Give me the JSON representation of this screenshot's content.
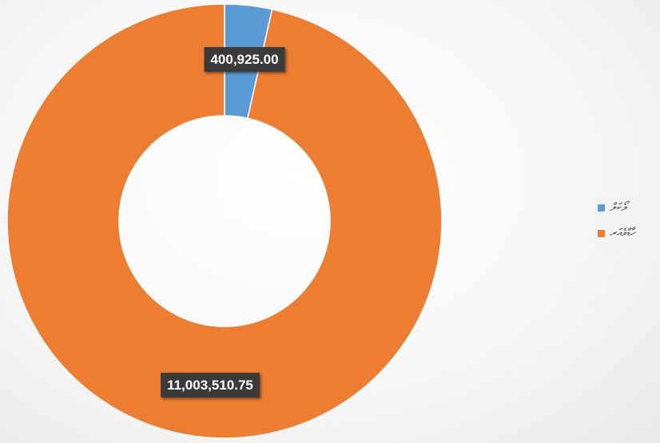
{
  "chart_data": {
    "type": "pie",
    "donut": true,
    "series": [
      {
        "name": "ލޯކަލް",
        "value": 400925.0,
        "label": "400,925.00",
        "color": "#5b9bd5"
      },
      {
        "name": "ހާޑްވެއަރ",
        "value": 11003510.75,
        "label": "11,003,510.75",
        "color": "#ed7d31"
      }
    ],
    "legend": {
      "position": "right"
    }
  }
}
